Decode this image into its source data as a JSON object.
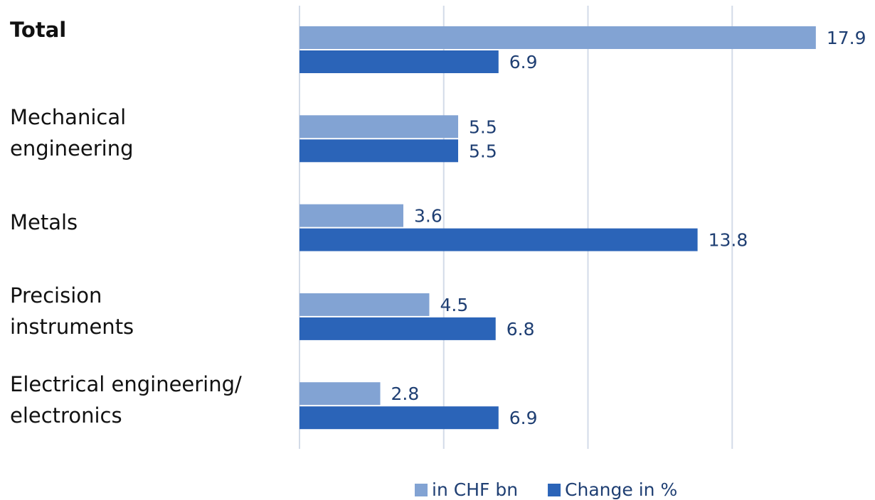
{
  "chart_data": {
    "type": "hbar",
    "categories": [
      "Total",
      "Mechanical\nengineering",
      "Metals",
      "Precision\ninstruments",
      "Electrical engineering/\nelectronics"
    ],
    "series": [
      {
        "name": "in CHF bn",
        "color": "#82a3d3",
        "values": [
          17.9,
          5.5,
          3.6,
          4.5,
          2.8
        ]
      },
      {
        "name": "Change in %",
        "color": "#2b64b8",
        "values": [
          6.9,
          5.5,
          13.8,
          6.8,
          6.9
        ]
      }
    ],
    "xlim": [
      0,
      20
    ],
    "xticks": [
      0,
      5,
      10,
      15
    ],
    "grid": true,
    "legend": "bottom"
  }
}
